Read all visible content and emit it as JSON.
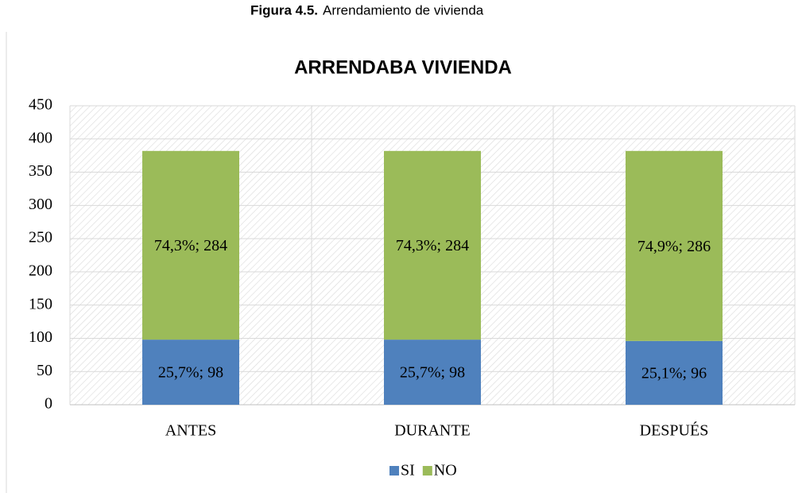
{
  "caption": {
    "label": "Figura  4.5.",
    "text": "Arrendamiento de vivienda"
  },
  "chart_data": {
    "type": "stacked_bar",
    "title": "ARRENDABA VIVIENDA",
    "categories": [
      "ANTES",
      "DURANTE",
      "DESPUÉS"
    ],
    "series": [
      {
        "name": "SI",
        "color": "#4f81bd",
        "values": [
          98,
          98,
          96
        ],
        "value_labels": [
          "25,7%; 98",
          "25,7%; 98",
          "25,1%; 96"
        ]
      },
      {
        "name": "NO",
        "color": "#9bbb59",
        "values": [
          284,
          284,
          286
        ],
        "value_labels": [
          "74,3%; 284",
          "74,3%; 284",
          "74,9%; 286"
        ]
      }
    ],
    "ylim": [
      0,
      450
    ],
    "yticks": [
      0,
      50,
      100,
      150,
      200,
      250,
      300,
      350,
      400,
      450
    ],
    "grid": true,
    "legend": "bottom"
  }
}
